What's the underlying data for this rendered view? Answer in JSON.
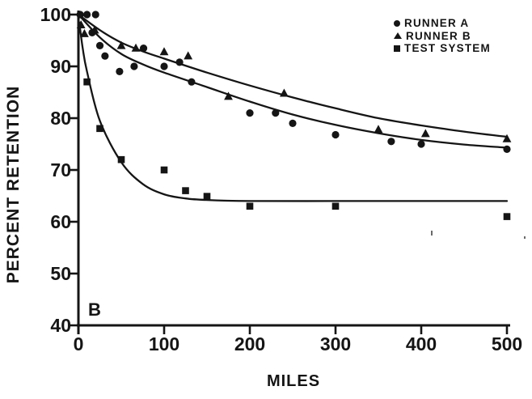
{
  "figure": {
    "panel_label": "B",
    "ink_color": "#151515",
    "background": "#ffffff"
  },
  "chart_data": {
    "type": "scatter",
    "title": "",
    "xlabel": "MILES",
    "ylabel": "PERCENT RETENTION",
    "xlim": [
      0,
      500
    ],
    "ylim": [
      40,
      100
    ],
    "x_ticks": [
      0,
      100,
      200,
      300,
      400,
      500
    ],
    "y_ticks": [
      40,
      50,
      60,
      70,
      80,
      90,
      100
    ],
    "grid": false,
    "legend_position": "top-right",
    "series": [
      {
        "name": "RUNNER A",
        "marker": "circle",
        "points": [
          [
            2,
            100
          ],
          [
            10,
            100
          ],
          [
            20,
            100
          ],
          [
            16,
            96.5
          ],
          [
            25,
            94
          ],
          [
            31,
            92
          ],
          [
            48,
            89
          ],
          [
            65,
            90
          ],
          [
            76,
            93.5
          ],
          [
            100,
            90
          ],
          [
            118,
            90.8
          ],
          [
            132,
            87
          ],
          [
            200,
            81
          ],
          [
            230,
            81
          ],
          [
            250,
            79
          ],
          [
            300,
            76.8
          ],
          [
            365,
            75.5
          ],
          [
            400,
            75
          ],
          [
            500,
            74
          ]
        ],
        "fit_curve": [
          [
            0,
            100
          ],
          [
            25,
            95.6
          ],
          [
            50,
            92.4
          ],
          [
            75,
            90.4
          ],
          [
            100,
            88.8
          ],
          [
            150,
            86
          ],
          [
            200,
            83.2
          ],
          [
            250,
            80.7
          ],
          [
            300,
            78.7
          ],
          [
            350,
            77.1
          ],
          [
            400,
            75.8
          ],
          [
            450,
            74.9
          ],
          [
            500,
            74.3
          ]
        ]
      },
      {
        "name": "RUNNER B",
        "marker": "triangle",
        "points": [
          [
            3,
            98
          ],
          [
            7,
            96.3
          ],
          [
            19,
            97
          ],
          [
            50,
            94
          ],
          [
            67,
            93.5
          ],
          [
            100,
            92.8
          ],
          [
            128,
            92
          ],
          [
            175,
            84.2
          ],
          [
            240,
            84.8
          ],
          [
            350,
            77.8
          ],
          [
            405,
            77
          ],
          [
            500,
            76
          ]
        ],
        "fit_curve": [
          [
            0,
            100
          ],
          [
            25,
            97
          ],
          [
            50,
            94.6
          ],
          [
            75,
            92.9
          ],
          [
            100,
            91.5
          ],
          [
            150,
            88.8
          ],
          [
            200,
            86.3
          ],
          [
            250,
            84
          ],
          [
            300,
            81.9
          ],
          [
            350,
            80
          ],
          [
            400,
            78.6
          ],
          [
            450,
            77.4
          ],
          [
            500,
            76.4
          ]
        ]
      },
      {
        "name": "TEST SYSTEM",
        "marker": "square",
        "points": [
          [
            10,
            87
          ],
          [
            25,
            78
          ],
          [
            50,
            72
          ],
          [
            100,
            70
          ],
          [
            125,
            66
          ],
          [
            150,
            64.9
          ],
          [
            200,
            63
          ],
          [
            300,
            63
          ],
          [
            500,
            61
          ]
        ],
        "fit_curve": [
          [
            1,
            98.5
          ],
          [
            5,
            93.5
          ],
          [
            10,
            89
          ],
          [
            25,
            79.5
          ],
          [
            50,
            71.5
          ],
          [
            75,
            67.3
          ],
          [
            100,
            65.3
          ],
          [
            125,
            64.5
          ],
          [
            150,
            64.2
          ],
          [
            200,
            64
          ],
          [
            300,
            64
          ],
          [
            400,
            64
          ],
          [
            500,
            64
          ]
        ]
      }
    ]
  },
  "legend": {
    "items": [
      {
        "icon": "circle-marker-icon",
        "label": "RUNNER A"
      },
      {
        "icon": "triangle-marker-icon",
        "label": "RUNNER B"
      },
      {
        "icon": "square-marker-icon",
        "label": "TEST SYSTEM"
      }
    ]
  }
}
